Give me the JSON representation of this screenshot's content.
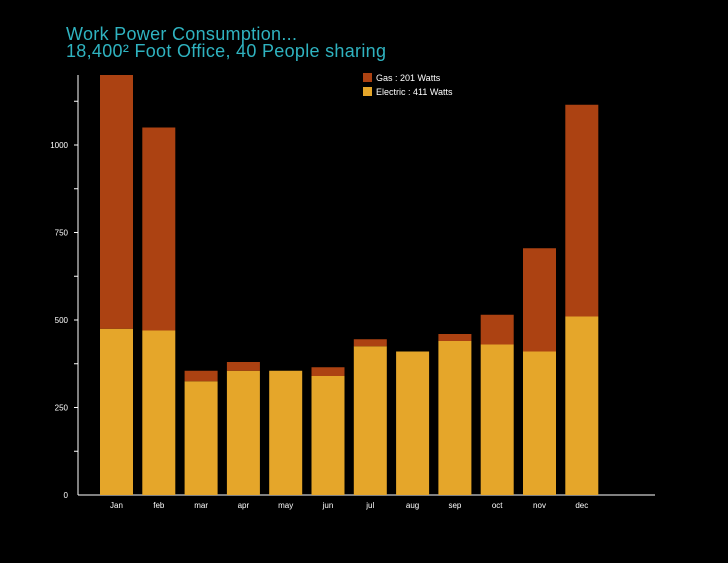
{
  "colors": {
    "background": "#000000",
    "title": "#2fb3c0",
    "gas": "#ac4212",
    "electric": "#e5a62a",
    "axis": "#ffffff"
  },
  "chart_data": {
    "type": "bar",
    "stacked": true,
    "title_line_1": "Work Power Consumption...",
    "title_line_2": "18,400² Foot Office, 40 People sharing",
    "xlabel": "",
    "ylabel": "",
    "ylim": [
      0,
      1200
    ],
    "yticks": [
      0,
      250,
      500,
      750,
      1000
    ],
    "categories": [
      "Jan",
      "feb",
      "mar",
      "apr",
      "may",
      "jun",
      "jul",
      "aug",
      "sep",
      "oct",
      "nov",
      "dec"
    ],
    "series": [
      {
        "name": "Electric",
        "legend": "Electric : 411 Watts",
        "color": "#e5a62a",
        "values": [
          475,
          470,
          325,
          355,
          355,
          340,
          425,
          410,
          440,
          430,
          410,
          510
        ]
      },
      {
        "name": "Gas",
        "legend": "Gas : 201 Watts",
        "color": "#ac4212",
        "values": [
          725,
          580,
          30,
          25,
          0,
          25,
          20,
          0,
          20,
          85,
          295,
          605
        ]
      }
    ],
    "legend_position": "top-right",
    "grid": false
  }
}
